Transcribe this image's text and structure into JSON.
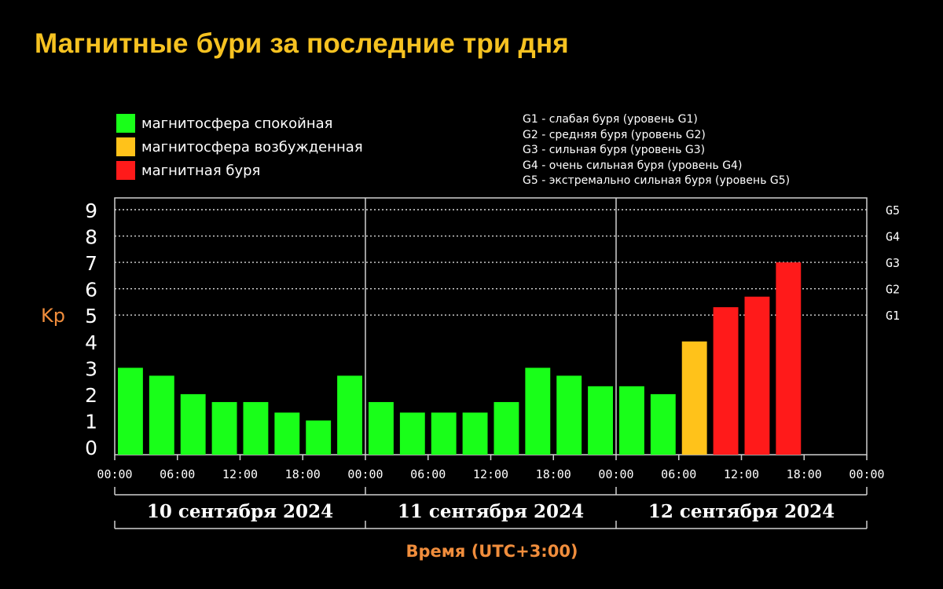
{
  "title": "Магнитные бури за последние три дня",
  "legend": [
    {
      "label": "магнитосфера спокойная",
      "color": "#19ff19"
    },
    {
      "label": "магнитосфера возбужденная",
      "color": "#ffc21a"
    },
    {
      "label": "магнитная буря",
      "color": "#ff1a1a"
    }
  ],
  "g_levels": [
    "G1 - слабая буря (уровень G1)",
    "G2 - средняя буря (уровень G2)",
    "G3 - сильная буря (уровень G3)",
    "G4 - очень сильная буря (уровень G4)",
    "G5 - экстремально сильная буря (уровень G5)"
  ],
  "chart_data": {
    "type": "bar",
    "ylabel": "Kp",
    "xlabel": "Время (UTC+3:00)",
    "ylim": [
      0,
      9
    ],
    "y_ticks": [
      "0",
      "1",
      "2",
      "3",
      "4",
      "5",
      "6",
      "7",
      "8",
      "9"
    ],
    "right_axis": [
      {
        "label": "G1",
        "kp": 5
      },
      {
        "label": "G2",
        "kp": 6
      },
      {
        "label": "G3",
        "kp": 7
      },
      {
        "label": "G4",
        "kp": 8
      },
      {
        "label": "G5",
        "kp": 9
      }
    ],
    "x_ticks": [
      "00:00",
      "06:00",
      "12:00",
      "18:00",
      "00:00",
      "06:00",
      "12:00",
      "18:00",
      "00:00",
      "06:00",
      "12:00",
      "18:00",
      "00:00"
    ],
    "days": [
      "10 сентября 2024",
      "11 сентября 2024",
      "12 сентября 2024"
    ],
    "interval_hours": 3,
    "grid": "horizontal dotted",
    "values": [
      3.0,
      2.7,
      2.0,
      1.7,
      1.7,
      1.3,
      1.0,
      2.7,
      1.7,
      1.3,
      1.3,
      1.3,
      1.7,
      3.0,
      2.7,
      2.3,
      2.3,
      2.0,
      4.0,
      5.3,
      5.7,
      7.0
    ],
    "colors": {
      "quiet": "#19ff19",
      "active": "#ffc21a",
      "storm": "#ff1a1a"
    }
  }
}
